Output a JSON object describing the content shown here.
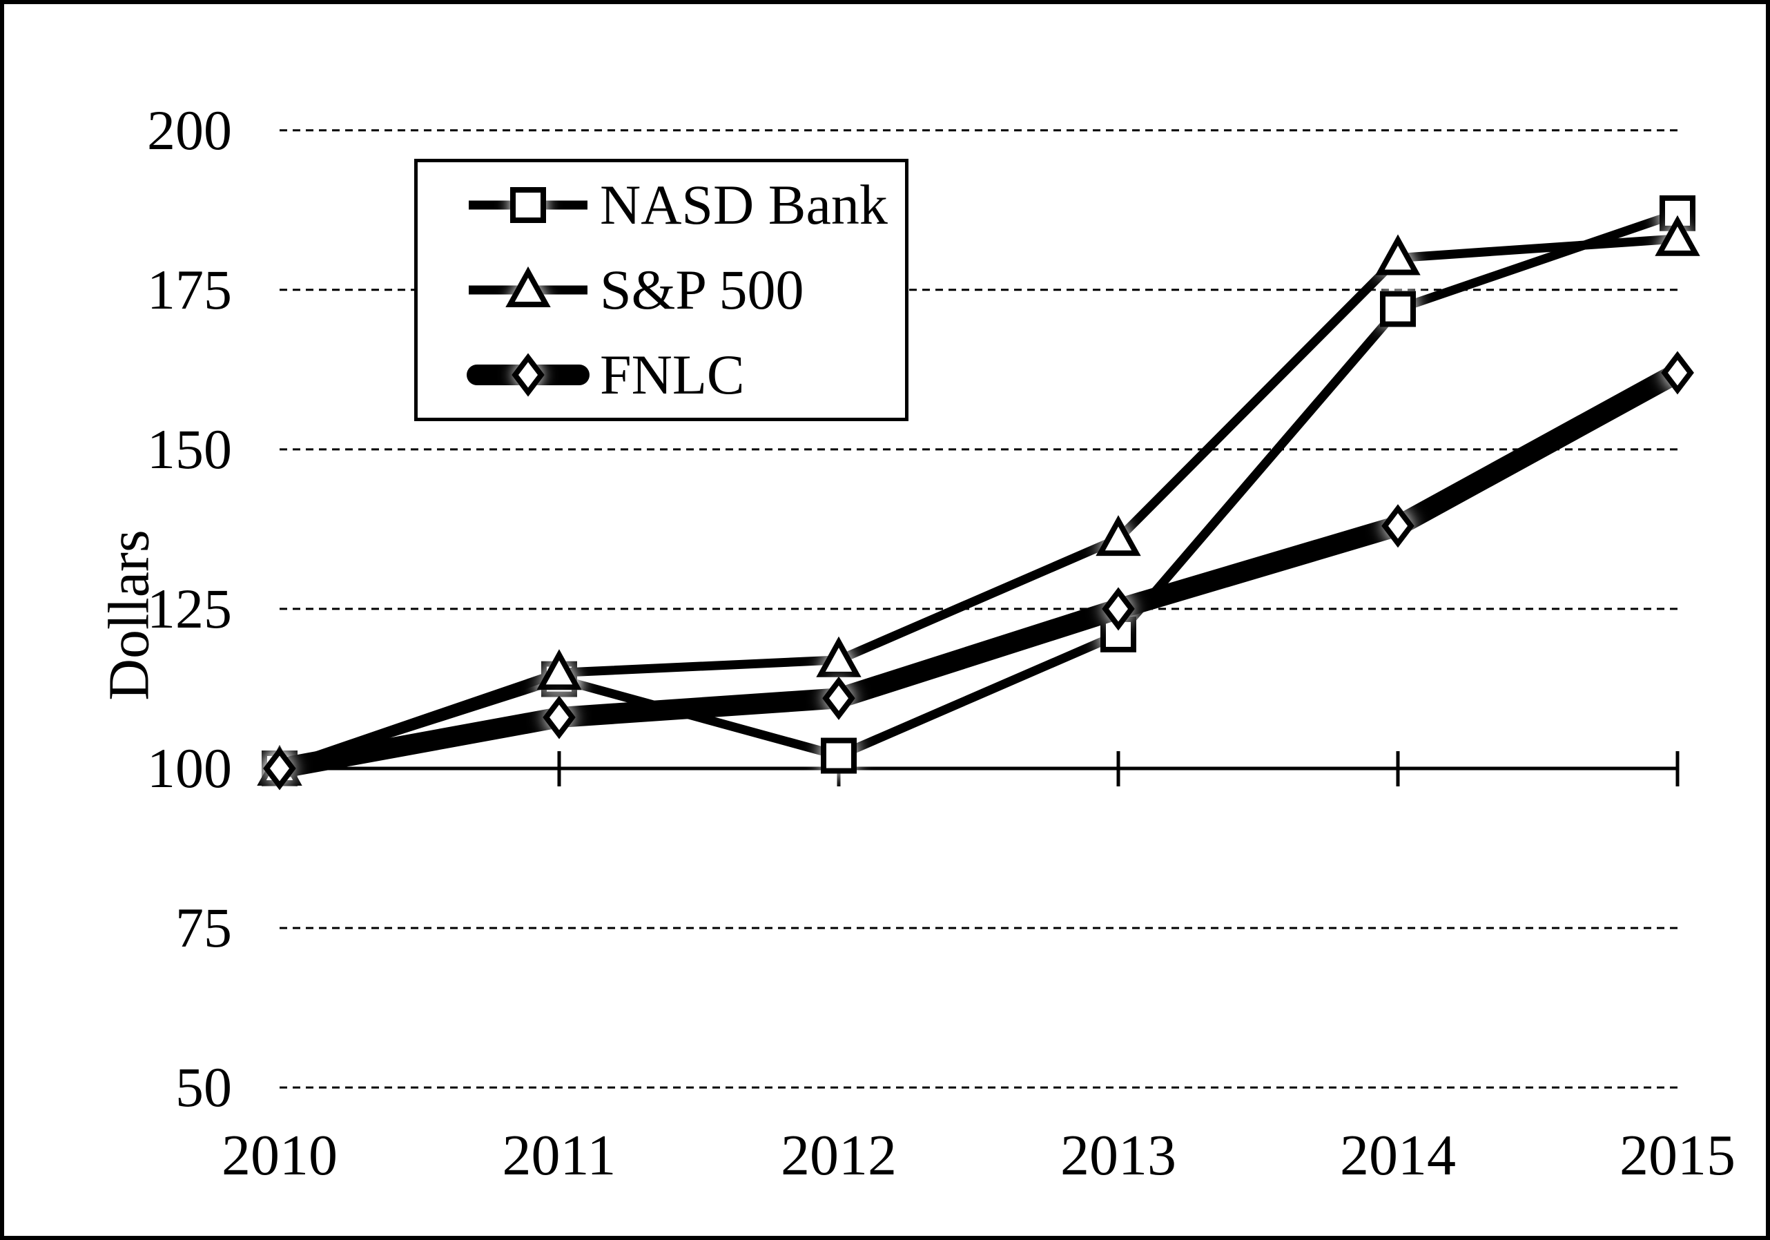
{
  "chart_data": {
    "type": "line",
    "title": "",
    "ylabel": "Dollars",
    "x_categories": [
      "2010",
      "2011",
      "2012",
      "2013",
      "2014",
      "2015"
    ],
    "y_ticks": [
      200,
      175,
      150,
      125,
      100,
      75,
      50
    ],
    "ylim": [
      50,
      200
    ],
    "x_axis_cross_at": 100,
    "grid": "horizontal-dashed",
    "legend_position": "upper-left-inside",
    "series": [
      {
        "name": "NASD Bank",
        "marker": "square",
        "line_style": "thin",
        "values": [
          100,
          114,
          102,
          121,
          172,
          187
        ]
      },
      {
        "name": "S&P 500",
        "marker": "triangle",
        "line_style": "thin",
        "values": [
          100,
          115,
          117,
          136,
          180,
          183
        ]
      },
      {
        "name": "FNLC",
        "marker": "diamond",
        "line_style": "thick",
        "values": [
          100,
          108,
          111,
          125,
          138,
          162
        ]
      }
    ]
  },
  "colors": {
    "series_line": "#000000",
    "marker_fill": "#ffffff",
    "background": "#ffffff",
    "border": "#000000",
    "text": "#000000"
  }
}
